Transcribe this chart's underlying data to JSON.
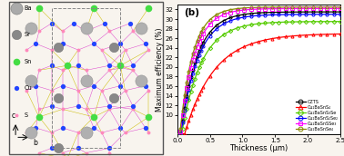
{
  "title_b": "(b)",
  "xlabel": "Thickness (μm)",
  "ylabel": "Maximum efficiency (%)",
  "ylim": [
    6,
    33
  ],
  "xlim": [
    0.0,
    2.5
  ],
  "yticks": [
    10,
    12,
    14,
    16,
    18,
    20,
    22,
    24,
    26,
    28,
    30,
    32
  ],
  "xticks": [
    0.0,
    0.5,
    1.0,
    1.5,
    2.0,
    2.5
  ],
  "legend_entries": [
    "CZTS",
    "Cu₂BaSnS₄",
    "Cu₂BaSnS₃Se",
    "Cu₂BaSnS₂Se₂",
    "Cu₂BaSnSSe₃",
    "Cu₂BaSnSe₄"
  ],
  "colors": [
    "black",
    "red",
    "#55cc00",
    "blue",
    "magenta",
    "#888800"
  ],
  "markers": [
    "o",
    "^",
    "D",
    "o",
    "s",
    "o"
  ],
  "saturation_vals": [
    31.5,
    27.0,
    29.5,
    31.0,
    32.2,
    32.5
  ],
  "half_thickness": [
    0.25,
    0.45,
    0.3,
    0.26,
    0.22,
    0.2
  ],
  "y_start": [
    8.0,
    7.5,
    8.0,
    8.5,
    8.5,
    9.0
  ],
  "background": "#f8f4ee",
  "left_panel_bg": "#ffffff",
  "atom_legend": [
    {
      "label": "Ba",
      "color": "#aaaaaa",
      "size": 7.0
    },
    {
      "label": "Sr",
      "color": "#888888",
      "size": 6.0
    },
    {
      "label": "Sn",
      "color": "#44dd44",
      "size": 5.0
    },
    {
      "label": "Cu",
      "color": "#2244ff",
      "size": 4.0
    },
    {
      "label": "S",
      "color": "#ff88bb",
      "size": 3.5
    }
  ],
  "ba_color": "#b0b0b0",
  "sr_color": "#888888",
  "sn_color": "#44dd44",
  "cu_color": "#2244ff",
  "s_color": "#ff88bb",
  "bond_pink": "#dd44cc",
  "bond_yellow": "#ccbb00"
}
